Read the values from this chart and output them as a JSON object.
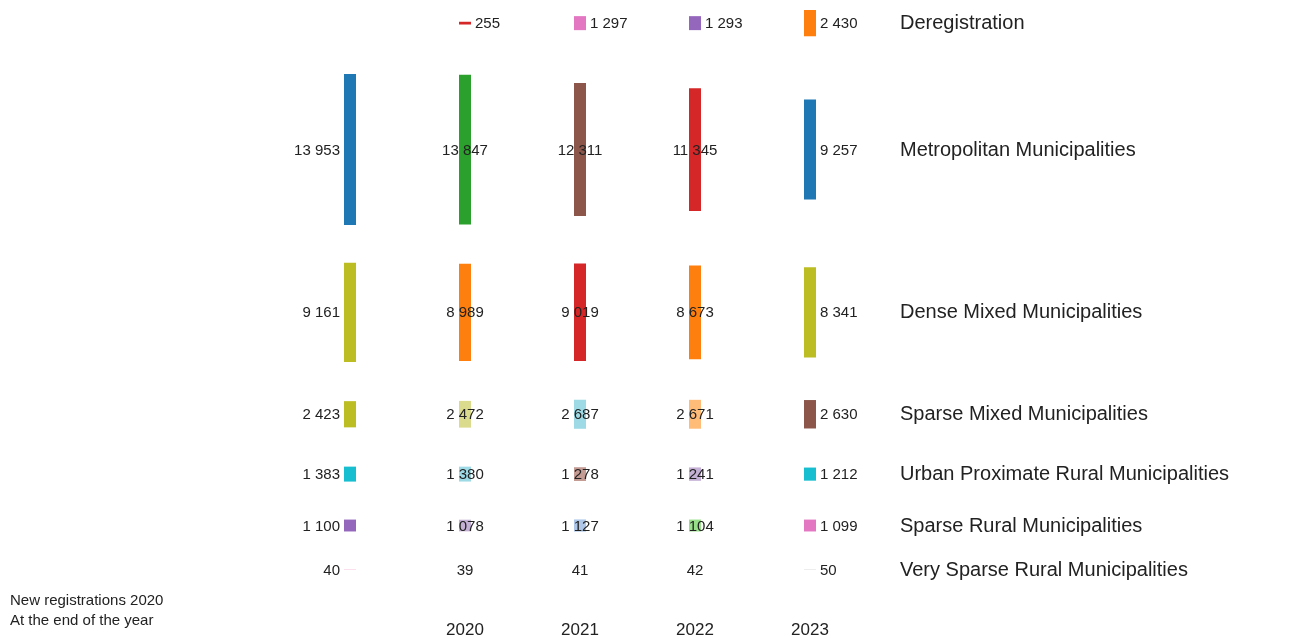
{
  "chart_data": {
    "type": "heatmap",
    "categories": [
      null,
      "2020",
      "2021",
      "2022",
      "2023"
    ],
    "y_categories": [
      "Deregistration",
      "Metropolitan Municipalities",
      "Dense Mixed Municipalities",
      "Sparse Mixed Municipalities",
      "Urban Proximate Rural Municipalities",
      "Sparse Rural Municipalities",
      "Very Sparse Rural Municipalities"
    ],
    "cells": [
      [
        null,
        255,
        1297,
        1293,
        2430
      ],
      [
        13953,
        13847,
        12311,
        11345,
        9257
      ],
      [
        9161,
        8989,
        9019,
        8673,
        8341
      ],
      [
        2423,
        2472,
        2687,
        2671,
        2630
      ],
      [
        1383,
        1380,
        1278,
        1241,
        1212
      ],
      [
        1100,
        1078,
        1127,
        1104,
        1099
      ],
      [
        40,
        39,
        41,
        42,
        50
      ]
    ],
    "cell_labels": [
      [
        null,
        "255",
        "1 297",
        "1 293",
        "2 430"
      ],
      [
        "13 953",
        "13 847",
        "12 311",
        "11 345",
        "9 257"
      ],
      [
        "9 161",
        "8 989",
        "9 019",
        "8 673",
        "8 341"
      ],
      [
        "2 423",
        "2 472",
        "2 687",
        "2 671",
        "2 630"
      ],
      [
        "1 383",
        "1 380",
        "1 278",
        "1 241",
        "1 212"
      ],
      [
        "1 100",
        "1 078",
        "1 127",
        "1 104",
        "1 099"
      ],
      [
        "40",
        "39",
        "41",
        "42",
        "50"
      ]
    ],
    "colors": [
      [
        null,
        "#d62728",
        "#e377c2",
        "#9467bd",
        "#ff7f0e"
      ],
      [
        "#1f77b4",
        "#2ca02c",
        "#8c564b",
        "#d62728",
        "#1f77b4"
      ],
      [
        "#bcbd22",
        "#ff7f0e",
        "#d62728",
        "#ff7f0e",
        "#bcbd22"
      ],
      [
        "#bcbd22",
        "#dbdb8d",
        "#9edae5",
        "#ffbb78",
        "#8c564b"
      ],
      [
        "#17becf",
        "#9edae5",
        "#c49c94",
        "#c5b0d5",
        "#17becf"
      ],
      [
        "#9467bd",
        "#c5b0d5",
        "#aec7e8",
        "#98df8a",
        "#e377c2"
      ],
      [
        "#f7b6d2",
        "#dddddd",
        "#dddddd",
        "#dddddd",
        "#dddddd"
      ]
    ],
    "annotations": [
      "New registrations 2020",
      "At the end of the year"
    ]
  }
}
